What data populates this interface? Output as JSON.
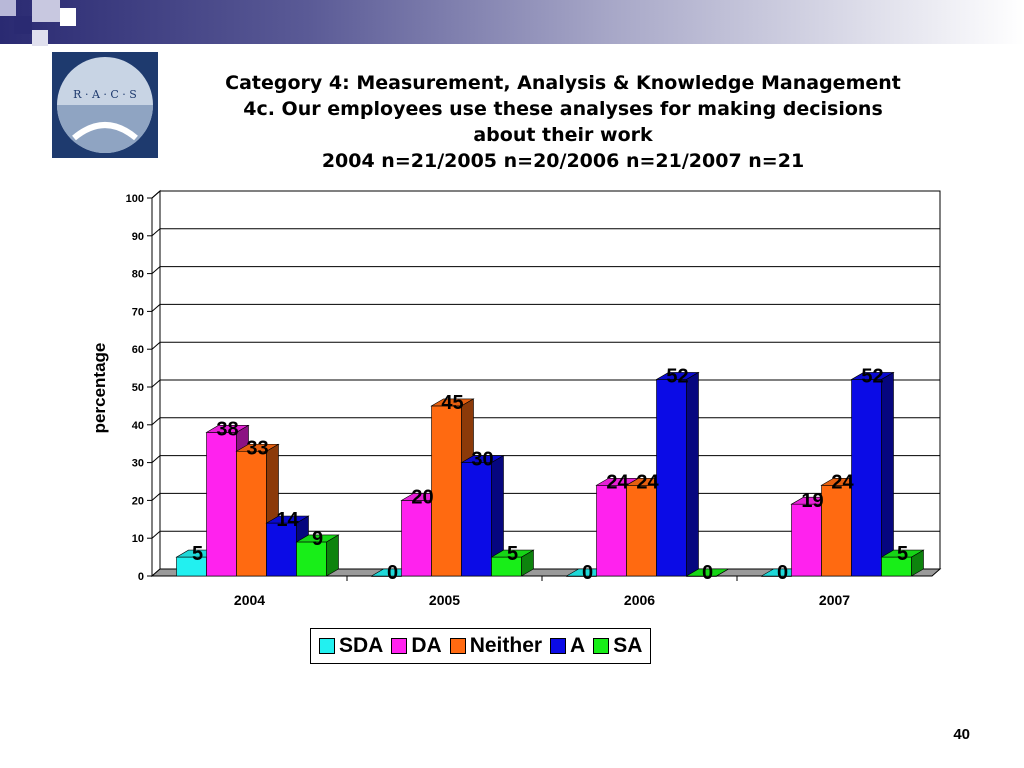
{
  "slide": {
    "title_lines": [
      "Category 4: Measurement, Analysis & Knowledge Management",
      "4c. Our employees use these analyses for making decisions",
      "about their work",
      "2004 n=21/2005 n=20/2006 n=21/2007 n=21"
    ],
    "page_number": "40"
  },
  "logo": {
    "text": "R · A · C · S"
  },
  "colors": {
    "SDA": "#22f0f0",
    "DA": "#ff22ee",
    "Neither": "#ff6a11",
    "A": "#0b0be6",
    "SA": "#18ee18"
  },
  "chart_data": {
    "type": "bar",
    "categories": [
      "2004",
      "2005",
      "2006",
      "2007"
    ],
    "series": [
      {
        "name": "SDA",
        "values": [
          5,
          0,
          0,
          0
        ]
      },
      {
        "name": "DA",
        "values": [
          38,
          20,
          24,
          19
        ]
      },
      {
        "name": "Neither",
        "values": [
          33,
          45,
          24,
          24
        ]
      },
      {
        "name": "A",
        "values": [
          14,
          30,
          52,
          52
        ]
      },
      {
        "name": "SA",
        "values": [
          9,
          5,
          0,
          5
        ]
      }
    ],
    "xlabel": "",
    "ylabel": "percentage",
    "ylim": [
      0,
      100
    ],
    "yticks": [
      0,
      10,
      20,
      30,
      40,
      50,
      60,
      70,
      80,
      90,
      100
    ],
    "grid": true,
    "legend_position": "bottom",
    "style": "3d-clustered-bar"
  }
}
